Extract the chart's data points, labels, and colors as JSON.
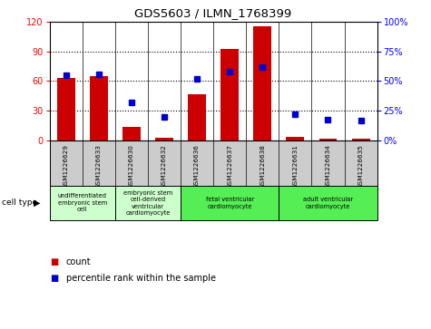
{
  "title": "GDS5603 / ILMN_1768399",
  "samples": [
    "GSM1226629",
    "GSM1226633",
    "GSM1226630",
    "GSM1226632",
    "GSM1226636",
    "GSM1226637",
    "GSM1226638",
    "GSM1226631",
    "GSM1226634",
    "GSM1226635"
  ],
  "counts": [
    63,
    65,
    14,
    3,
    47,
    92,
    115,
    4,
    2,
    2
  ],
  "percentiles": [
    55,
    56,
    32,
    20,
    52,
    58,
    62,
    22,
    18,
    17
  ],
  "left_ylim": [
    0,
    120
  ],
  "right_ylim": [
    0,
    100
  ],
  "left_yticks": [
    0,
    30,
    60,
    90,
    120
  ],
  "right_yticks": [
    0,
    25,
    50,
    75,
    100
  ],
  "right_yticklabels": [
    "0%",
    "25%",
    "50%",
    "75%",
    "100%"
  ],
  "bar_color": "#cc0000",
  "dot_color": "#0000cc",
  "cell_types": [
    {
      "label": "undifferentiated\nembryonic stem\ncell",
      "start": 0,
      "end": 2,
      "color": "#ccffcc"
    },
    {
      "label": "embryonic stem\ncell-derived\nventricular\ncardiomyocyte",
      "start": 2,
      "end": 4,
      "color": "#ccffcc"
    },
    {
      "label": "fetal ventricular\ncardiomyocyte",
      "start": 4,
      "end": 7,
      "color": "#55ee55"
    },
    {
      "label": "adult ventricular\ncardiomyocyte",
      "start": 7,
      "end": 10,
      "color": "#55ee55"
    }
  ],
  "legend_count_label": "count",
  "legend_percentile_label": "percentile rank within the sample",
  "cell_type_label": "cell type",
  "bg_color": "#ffffff",
  "tick_area_bg": "#cccccc"
}
